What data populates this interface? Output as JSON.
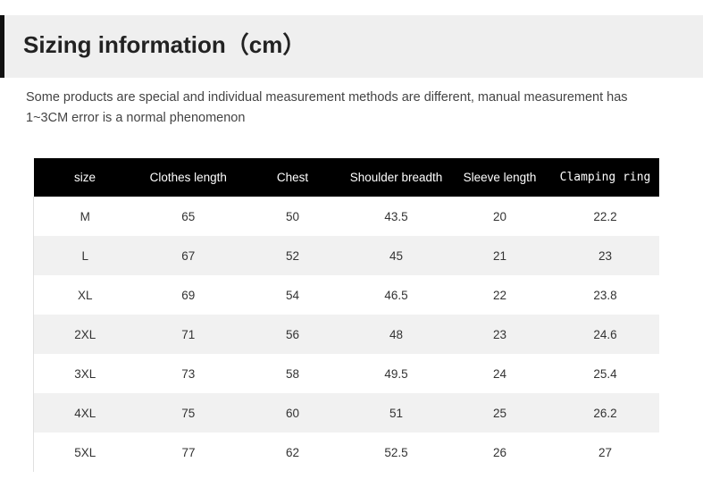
{
  "header": {
    "title": "Sizing information（cm）"
  },
  "note": "Some products are special and individual measurement methods are different, manual measurement has  1~3CM error is a normal phenomenon",
  "table": {
    "columns": [
      "size",
      "Clothes length",
      "Chest",
      "Shoulder breadth",
      "Sleeve length",
      "Clamping ring"
    ],
    "rows": [
      [
        "M",
        "65",
        "50",
        "43.5",
        "20",
        "22.2"
      ],
      [
        "L",
        "67",
        "52",
        "45",
        "21",
        "23"
      ],
      [
        "XL",
        "69",
        "54",
        "46.5",
        "22",
        "23.8"
      ],
      [
        "2XL",
        "71",
        "56",
        "48",
        "23",
        "24.6"
      ],
      [
        "3XL",
        "73",
        "58",
        "49.5",
        "24",
        "25.4"
      ],
      [
        "4XL",
        "75",
        "60",
        "51",
        "25",
        "26.2"
      ],
      [
        "5XL",
        "77",
        "62",
        "52.5",
        "26",
        "27"
      ]
    ]
  },
  "colors": {
    "header_bg": "#efefef",
    "accent_bar": "#111111",
    "table_head_bg": "#000000",
    "row_alt_bg": "#f1f1f1"
  }
}
